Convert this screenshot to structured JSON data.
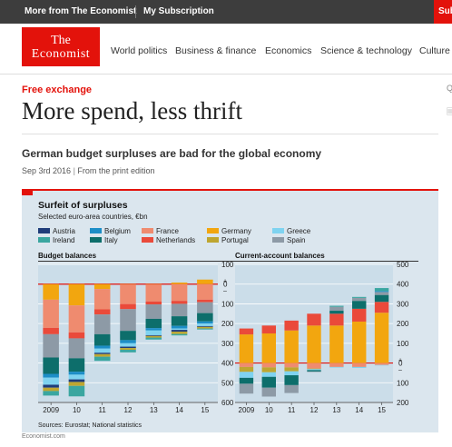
{
  "topbar": {
    "more": "More from The Economist",
    "subscription": "My Subscription",
    "subscribe_partial": "Subs"
  },
  "logo": {
    "line1": "The",
    "line2": "Economist"
  },
  "nav": [
    "World politics",
    "Business & finance",
    "Economics",
    "Science & technology",
    "Culture"
  ],
  "article": {
    "section": "Free exchange",
    "headline": "More spend, less thrift",
    "subheadline": "German budget surpluses are bad for the global economy",
    "date": "Sep 3rd 2016",
    "separator": "|",
    "edition": "From the print edition"
  },
  "side_marks": [
    "Q",
    "🗏"
  ],
  "image_source": "Economist.com",
  "colors": {
    "brand_red": "#e3120b",
    "chart_bg": "#dbe6ee",
    "plot_bg": "#cbdde9"
  },
  "chart_data": {
    "type": "bar",
    "title": "Surfeit of surpluses",
    "subtitle": "Selected euro-area countries, €bn",
    "source": "Sources: Eurostat; National statistics",
    "legend_placement": "top",
    "legend": [
      {
        "name": "Austria",
        "color": "#1f3d7a"
      },
      {
        "name": "Belgium",
        "color": "#1c8ec7"
      },
      {
        "name": "France",
        "color": "#ef8b6f"
      },
      {
        "name": "Germany",
        "color": "#f2a60f"
      },
      {
        "name": "Greece",
        "color": "#7fd3f0"
      },
      {
        "name": "Ireland",
        "color": "#3aa6a0"
      },
      {
        "name": "Italy",
        "color": "#0d6e6b"
      },
      {
        "name": "Netherlands",
        "color": "#ea4a3a"
      },
      {
        "name": "Portugal",
        "color": "#bea630"
      },
      {
        "name": "Spain",
        "color": "#8d9aa6"
      }
    ],
    "categories": [
      "2009",
      "10",
      "11",
      "12",
      "13",
      "14",
      "15"
    ],
    "panels": [
      {
        "title": "Budget balances",
        "ylim": [
          -600,
          100
        ],
        "tick_labels": [
          "100",
          "+",
          "0",
          "–",
          "100",
          "200",
          "300",
          "400",
          "500",
          "600"
        ],
        "series": [
          {
            "name": "Germany",
            "values": [
              -79,
              -108,
              -25,
              -2,
              -2,
              8,
              23
            ]
          },
          {
            "name": "France",
            "values": [
              -143,
              -137,
              -103,
              -99,
              -86,
              -85,
              -79
            ]
          },
          {
            "name": "Netherlands",
            "values": [
              -32,
              -30,
              -26,
              -26,
              -15,
              -15,
              -13
            ]
          },
          {
            "name": "Spain",
            "values": [
              -118,
              -101,
              -100,
              -110,
              -73,
              -63,
              -55
            ]
          },
          {
            "name": "Italy",
            "values": [
              -83,
              -68,
              -58,
              -47,
              -47,
              -49,
              -42
            ]
          },
          {
            "name": "Belgium",
            "values": [
              -19,
              -15,
              -15,
              -16,
              -12,
              -13,
              -11
            ]
          },
          {
            "name": "Greece",
            "values": [
              -36,
              -24,
              -21,
              -17,
              -24,
              -7,
              -13
            ]
          },
          {
            "name": "Austria",
            "values": [
              -15,
              -13,
              -7,
              -7,
              -4,
              -9,
              -4
            ]
          },
          {
            "name": "Portugal",
            "values": [
              -17,
              -20,
              -13,
              -9,
              -8,
              -12,
              -8
            ]
          },
          {
            "name": "Ireland",
            "values": [
              -23,
              -53,
              -21,
              -13,
              -10,
              -7,
              -5
            ]
          }
        ]
      },
      {
        "title": "Current-account balances",
        "ylim": [
          -200,
          500
        ],
        "tick_labels": [
          "500",
          "400",
          "300",
          "200",
          "100",
          "+",
          "0",
          "–",
          "100",
          "200"
        ],
        "series": [
          {
            "name": "Germany",
            "values": [
              145,
              150,
              165,
              190,
              190,
              210,
              255
            ]
          },
          {
            "name": "Netherlands",
            "values": [
              30,
              40,
              50,
              60,
              60,
              65,
              55
            ]
          },
          {
            "name": "Italy",
            "values": [
              0,
              0,
              0,
              0,
              15,
              40,
              35
            ]
          },
          {
            "name": "Spain",
            "values": [
              0,
              0,
              0,
              0,
              20,
              15,
              15
            ]
          },
          {
            "name": "Belgium",
            "values": [
              0,
              0,
              0,
              0,
              0,
              0,
              5
            ]
          },
          {
            "name": "Ireland",
            "values": [
              0,
              0,
              0,
              0,
              5,
              5,
              15
            ]
          },
          {
            "name": "France",
            "values": [
              -20,
              -22,
              -22,
              -28,
              -20,
              -20,
              -10
            ]
          },
          {
            "name": "Portugal",
            "values": [
              -25,
              -25,
              -20,
              -3,
              0,
              0,
              0
            ]
          },
          {
            "name": "Greece",
            "values": [
              -30,
              -23,
              -20,
              -5,
              -3,
              -5,
              -2
            ]
          },
          {
            "name": "Italy",
            "values": [
              -30,
              -55,
              -50,
              -7,
              0,
              0,
              0
            ]
          },
          {
            "name": "Spain",
            "values": [
              -50,
              -45,
              -40,
              -2,
              0,
              0,
              0
            ]
          }
        ]
      }
    ]
  }
}
